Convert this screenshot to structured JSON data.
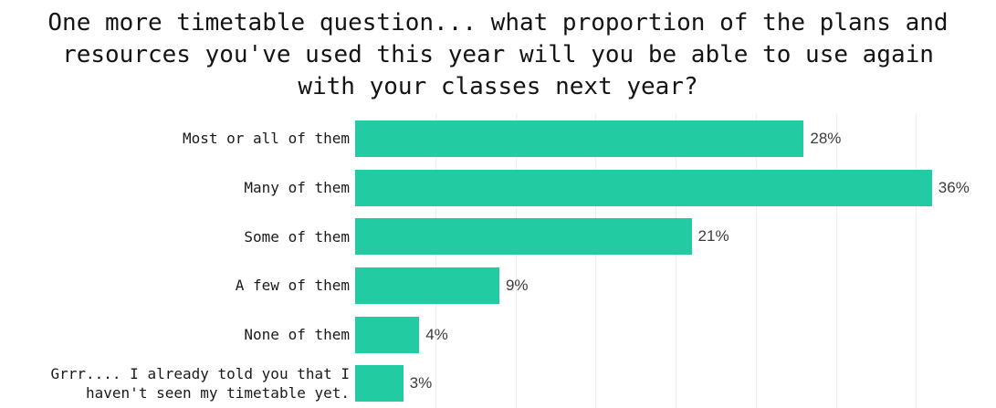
{
  "title_lines": [
    "One more timetable question... what proportion of the plans and",
    "resources you've used this year will you be able to use again",
    "with your classes next year?"
  ],
  "chart_data": {
    "type": "bar",
    "orientation": "horizontal",
    "title": "One more timetable question... what proportion of the plans and resources you've used this year will you be able to use again with your classes next year?",
    "categories": [
      "Most or all of them",
      "Many of them",
      "Some of them",
      "A few of them",
      "None of them",
      "Grrr.... I already told you that I\nhaven't seen my timetable yet."
    ],
    "values": [
      28,
      36,
      21,
      9,
      4,
      3
    ],
    "value_labels": [
      "28%",
      "36%",
      "21%",
      "9%",
      "4%",
      "3%"
    ],
    "xlabel": "",
    "ylabel": "",
    "xlim": [
      0,
      40
    ],
    "gridline_step": 5,
    "grid": true,
    "legend": false,
    "data_label_position": "outside-end",
    "bar_color": "#23cba2",
    "gridline_color": "#efefef",
    "title_color": "#141414",
    "category_label_color": "#1a1a1a",
    "value_label_color": "#3c3c3c",
    "background_color": "#ffffff"
  }
}
